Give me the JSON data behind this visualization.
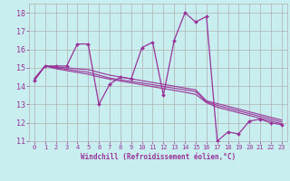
{
  "title": "",
  "xlabel": "Windchill (Refroidissement éolien,°C)",
  "ylabel": "",
  "bg_color": "#c8eef0",
  "grid_color": "#b0b0b0",
  "line_color": "#993399",
  "xlim": [
    -0.5,
    23.5
  ],
  "ylim": [
    11,
    18.5
  ],
  "xticks": [
    0,
    1,
    2,
    3,
    4,
    5,
    6,
    7,
    8,
    9,
    10,
    11,
    12,
    13,
    14,
    15,
    16,
    17,
    18,
    19,
    20,
    21,
    22,
    23
  ],
  "yticks": [
    11,
    12,
    13,
    14,
    15,
    16,
    17,
    18
  ],
  "series": [
    [
      14.3,
      15.1,
      15.1,
      15.1,
      16.3,
      16.3,
      13.0,
      14.1,
      14.5,
      14.4,
      16.1,
      16.4,
      13.5,
      16.5,
      18.0,
      17.5,
      17.8,
      11.0,
      11.5,
      11.4,
      12.1,
      12.2,
      12.0,
      11.9
    ],
    [
      14.4,
      15.1,
      15.05,
      15.0,
      14.95,
      14.9,
      14.75,
      14.6,
      14.5,
      14.4,
      14.3,
      14.2,
      14.1,
      14.0,
      13.9,
      13.8,
      13.2,
      13.05,
      12.9,
      12.75,
      12.6,
      12.45,
      12.3,
      12.15
    ],
    [
      14.4,
      15.1,
      15.0,
      14.92,
      14.84,
      14.76,
      14.6,
      14.44,
      14.35,
      14.26,
      14.17,
      14.08,
      13.98,
      13.89,
      13.8,
      13.7,
      13.15,
      12.95,
      12.8,
      12.65,
      12.5,
      12.35,
      12.2,
      12.05
    ],
    [
      14.4,
      15.1,
      14.95,
      14.85,
      14.75,
      14.65,
      14.5,
      14.38,
      14.28,
      14.18,
      14.08,
      13.97,
      13.87,
      13.77,
      13.67,
      13.55,
      13.1,
      12.85,
      12.7,
      12.55,
      12.4,
      12.25,
      12.1,
      11.95
    ]
  ]
}
